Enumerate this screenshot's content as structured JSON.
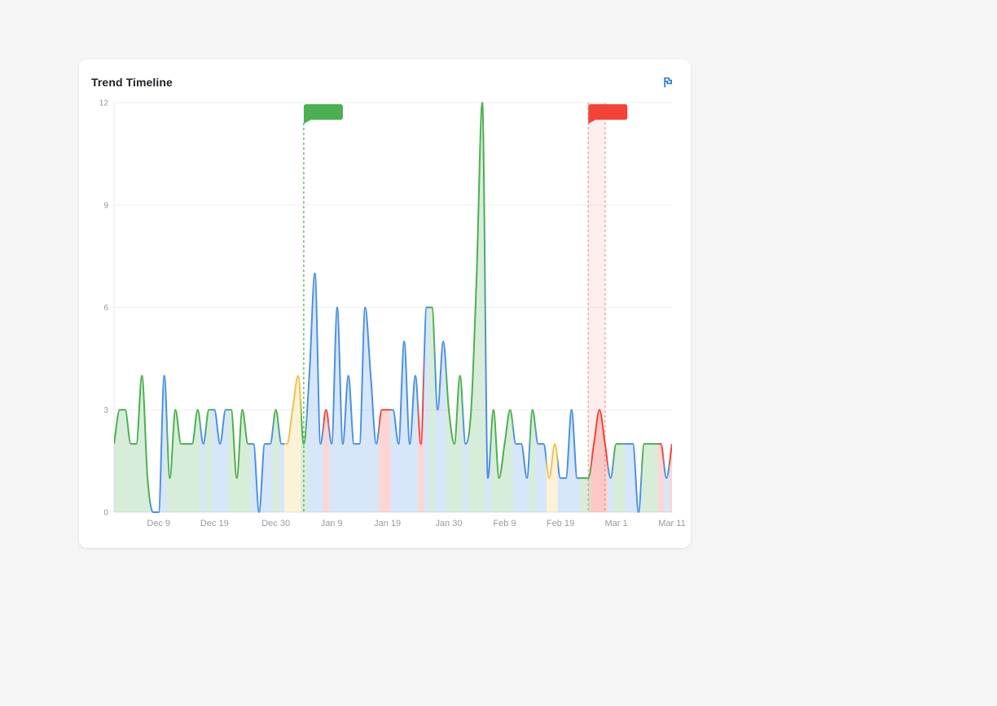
{
  "card": {
    "title": "Trend Timeline"
  },
  "header": {
    "flag_icon_name": "flag-icon",
    "flag_icon_color": "#1f7ad4"
  },
  "chart_data": {
    "type": "area",
    "title": "Trend Timeline",
    "x": [
      "Dec 1",
      "Dec 2",
      "Dec 3",
      "Dec 4",
      "Dec 5",
      "Dec 6",
      "Dec 7",
      "Dec 8",
      "Dec 9",
      "Dec 10",
      "Dec 11",
      "Dec 12",
      "Dec 13",
      "Dec 14",
      "Dec 15",
      "Dec 16",
      "Dec 17",
      "Dec 18",
      "Dec 19",
      "Dec 20",
      "Dec 21",
      "Dec 22",
      "Dec 23",
      "Dec 24",
      "Dec 25",
      "Dec 26",
      "Dec 27",
      "Dec 28",
      "Dec 29",
      "Dec 30",
      "Dec 31",
      "Jan 1",
      "Jan 2",
      "Jan 3",
      "Jan 4",
      "Jan 5",
      "Jan 6",
      "Jan 7",
      "Jan 8",
      "Jan 9",
      "Jan 10",
      "Jan 11",
      "Jan 12",
      "Jan 13",
      "Jan 14",
      "Jan 15",
      "Jan 16",
      "Jan 17",
      "Jan 18",
      "Jan 19",
      "Jan 20",
      "Jan 21",
      "Jan 22",
      "Jan 23",
      "Jan 24",
      "Jan 25",
      "Jan 26",
      "Jan 27",
      "Jan 28",
      "Jan 29",
      "Jan 30",
      "Jan 31",
      "Feb 1",
      "Feb 2",
      "Feb 3",
      "Feb 4",
      "Feb 5",
      "Feb 6",
      "Feb 7",
      "Feb 8",
      "Feb 9",
      "Feb 10",
      "Feb 11",
      "Feb 12",
      "Feb 13",
      "Feb 14",
      "Feb 15",
      "Feb 16",
      "Feb 17",
      "Feb 18",
      "Feb 19",
      "Feb 20",
      "Feb 21",
      "Feb 22",
      "Feb 23",
      "Feb 24",
      "Feb 25",
      "Feb 26",
      "Feb 27",
      "Feb 28",
      "Mar 1",
      "Mar 2",
      "Mar 3",
      "Mar 4",
      "Mar 5",
      "Mar 6",
      "Mar 7",
      "Mar 8",
      "Mar 9",
      "Mar 10",
      "Mar 11"
    ],
    "values": [
      2,
      3,
      3,
      2,
      2,
      4,
      1,
      0,
      0,
      4,
      1,
      3,
      2,
      2,
      2,
      3,
      2,
      3,
      3,
      2,
      3,
      3,
      1,
      3,
      2,
      2,
      0,
      2,
      2,
      3,
      2,
      2,
      3,
      4,
      2,
      4,
      7,
      2,
      3,
      2,
      6,
      2,
      4,
      2,
      2,
      6,
      4,
      2,
      3,
      3,
      3,
      2,
      5,
      2,
      4,
      2,
      6,
      6,
      3,
      5,
      3,
      2,
      4,
      2,
      3,
      7,
      12,
      1,
      3,
      1,
      2,
      3,
      2,
      2,
      1,
      3,
      2,
      2,
      1,
      2,
      1,
      1,
      3,
      1,
      1,
      1,
      2,
      3,
      2,
      1,
      2,
      2,
      2,
      2,
      0,
      2,
      2,
      2,
      2,
      1,
      2
    ],
    "point_colors": "gggggggbbbggggggbgbbbggggbbbbgbyyygbbbrbbbbbbbbbrrbbbbbrbgbbgggbgggbggggbbbgbbyybbbbggrrrbggbbbgggrbr",
    "palette": {
      "g": "#4caf50",
      "b": "#4a90e2",
      "y": "#f0c24b",
      "r": "#f44336"
    },
    "fill_opacity": 0.22,
    "x_tick_labels": [
      "Dec 9",
      "Dec 19",
      "Dec 30",
      "Jan 9",
      "Jan 19",
      "Jan 30",
      "Feb 9",
      "Feb 19",
      "Mar 1",
      "Mar 11"
    ],
    "y_ticks": [
      0,
      3,
      6,
      9,
      12
    ],
    "ylim": [
      0,
      12
    ],
    "grid": "horizontal",
    "legend": "none",
    "annotations": [
      {
        "kind": "flag",
        "name": "green-flag-marker",
        "color": "#4caf50",
        "date": "Jan 4"
      },
      {
        "kind": "region",
        "name": "red-flag-region",
        "color": "#f44336",
        "from": "Feb 24",
        "to": "Feb 27"
      }
    ]
  }
}
